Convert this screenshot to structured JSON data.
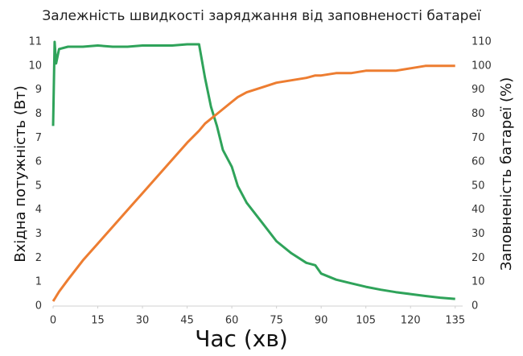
{
  "chart_data": {
    "type": "line",
    "title": "Залежність швидкості заряджання від заповненості батареї",
    "x_label": "Час (хв)",
    "y_label": "Вхідна потужність (Вт)",
    "y2_label": "Заповненість батареї (%)",
    "x": [
      0,
      0.5,
      1,
      2,
      5,
      10,
      15,
      20,
      25,
      30,
      35,
      40,
      45,
      49,
      51,
      53,
      55,
      57,
      60,
      62,
      65,
      70,
      75,
      80,
      85,
      88,
      90,
      95,
      100,
      105,
      110,
      115,
      120,
      125,
      130,
      135
    ],
    "series": [
      {
        "name": "Вхідна потужність",
        "color": "#2fa35a",
        "values": [
          7.5,
          11,
          10.1,
          10.7,
          10.8,
          10.8,
          10.85,
          10.8,
          10.8,
          10.85,
          10.85,
          10.85,
          10.9,
          10.9,
          9.5,
          8.3,
          7.5,
          6.5,
          5.8,
          5.0,
          4.3,
          3.5,
          2.7,
          2.2,
          1.8,
          1.7,
          1.35,
          1.1,
          0.95,
          0.8,
          0.68,
          0.58,
          0.5,
          0.42,
          0.35,
          0.3
        ]
      },
      {
        "name": "Заповненість батареї",
        "color": "#ed7d31",
        "axis": "y2",
        "values": [
          2,
          3,
          4,
          6,
          11,
          19,
          26,
          33,
          40,
          47,
          54,
          61,
          68,
          73,
          76,
          78,
          80,
          82,
          85,
          87,
          89,
          91,
          93,
          94,
          95,
          96,
          96,
          97,
          97,
          98,
          98,
          98,
          99,
          100,
          100,
          100
        ]
      }
    ],
    "xlim": [
      0,
      137.5
    ],
    "xticks": [
      0,
      15,
      30,
      45,
      60,
      75,
      90,
      105,
      120,
      135
    ],
    "ylim": [
      0,
      11
    ],
    "yticks": [
      0,
      1,
      2,
      3,
      4,
      5,
      6,
      7,
      8,
      9,
      10,
      11
    ],
    "y2lim": [
      0,
      110
    ],
    "y2ticks": [
      0,
      10,
      20,
      30,
      40,
      50,
      60,
      70,
      80,
      90,
      100,
      110
    ]
  }
}
